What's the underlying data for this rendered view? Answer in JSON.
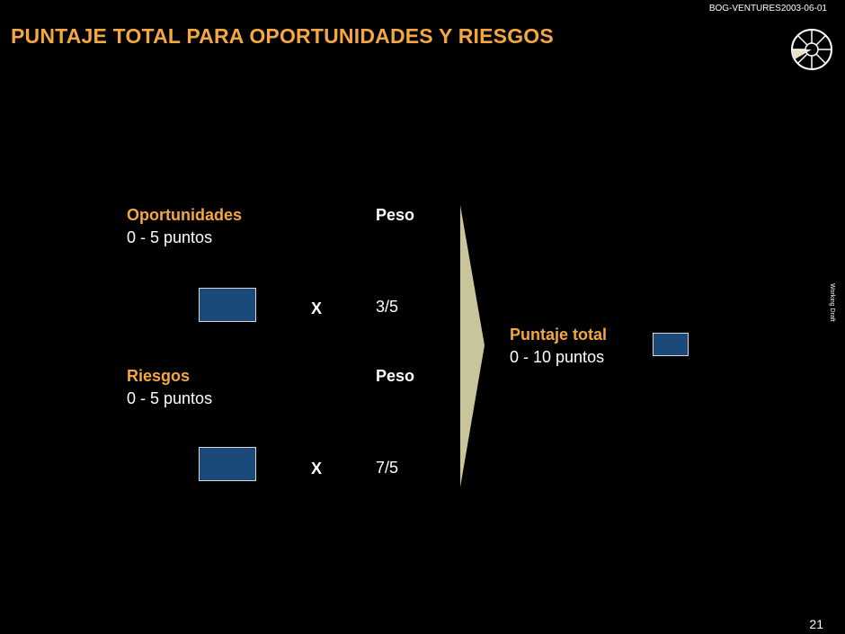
{
  "header": {
    "doc_id": "BOG-VENTURES2003-06-01",
    "title": "PUNTAJE TOTAL PARA OPORTUNIDADES Y RIESGOS",
    "side_label": "Working Draft"
  },
  "opportunities": {
    "label": "Oportunidades",
    "range": "0 - 5 puntos",
    "weight_label": "Peso",
    "operator": "X",
    "weight": "3/5"
  },
  "risks": {
    "label": "Riesgos",
    "range": "0 - 5 puntos",
    "weight_label": "Peso",
    "operator": "X",
    "weight": "7/5"
  },
  "total": {
    "label": "Puntaje total",
    "range": "0 - 10 puntos"
  },
  "footer": {
    "page_number": "21"
  },
  "colors": {
    "accent": "#f4a741",
    "input_box": "#1b4a7a",
    "arrow": "#c8c49c",
    "background": "#000000"
  }
}
